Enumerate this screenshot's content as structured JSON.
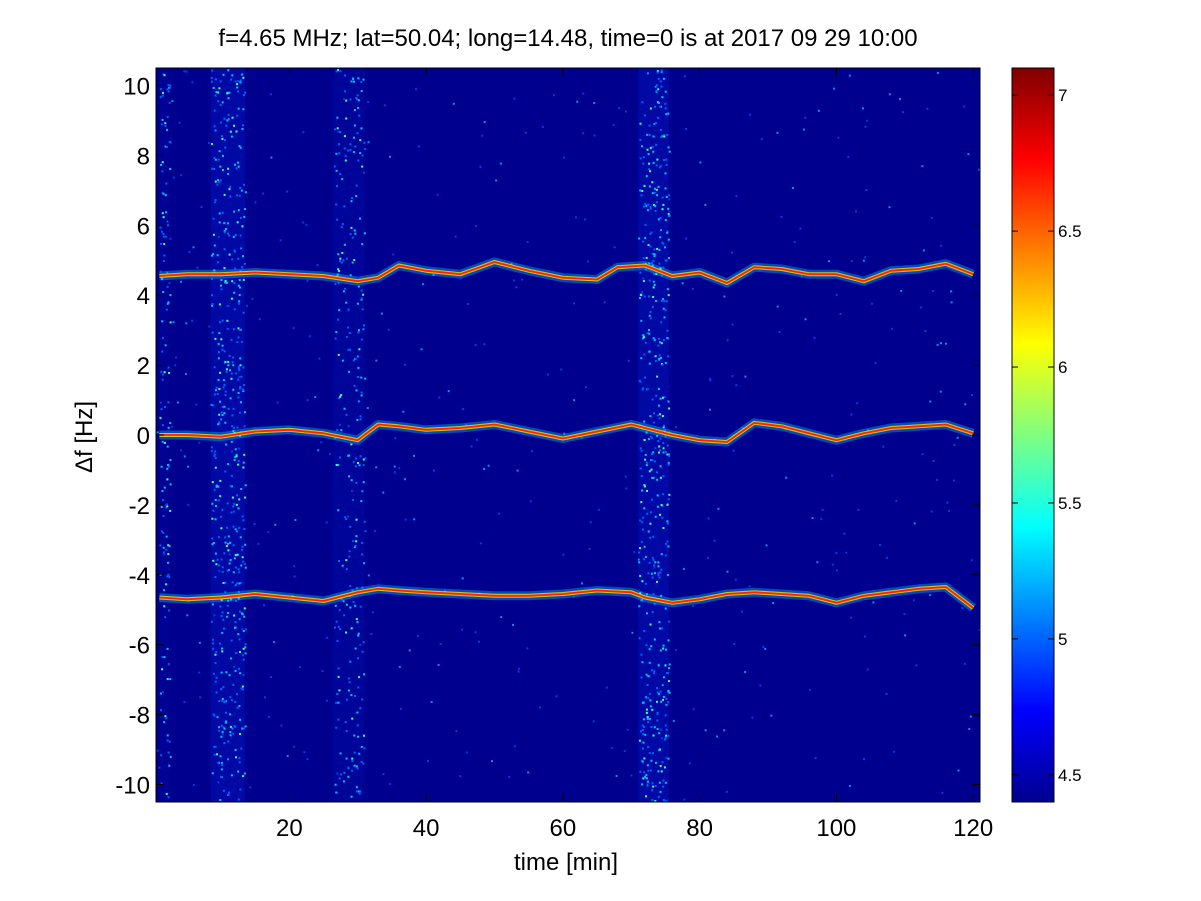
{
  "chart_data": {
    "type": "heatmap",
    "title": "f=4.65 MHz;  lat=50.04; long=14.48, time=0 is at 2017 09 29 10:00",
    "xlabel": "time [min]",
    "ylabel": "Δf [Hz]",
    "xlim": [
      0.5,
      121
    ],
    "ylim": [
      -10.5,
      10.5
    ],
    "x_ticks": [
      20,
      40,
      60,
      80,
      100,
      120
    ],
    "y_ticks": [
      -10,
      -8,
      -6,
      -4,
      -2,
      0,
      2,
      4,
      6,
      8,
      10
    ],
    "colorbar": {
      "range": [
        4.4,
        7.1
      ],
      "ticks": [
        4.5,
        5,
        5.5,
        6,
        6.5,
        7
      ],
      "colormap": "jet"
    },
    "background_color": "#00008f",
    "broadband_bands_time_min": [
      {
        "from": 8.5,
        "to": 13.5,
        "intensity": 0.55
      },
      {
        "from": 26.5,
        "to": 31.0,
        "intensity": 0.3
      },
      {
        "from": 71.0,
        "to": 75.5,
        "intensity": 0.55
      },
      {
        "from": 1.0,
        "to": 2.5,
        "intensity": 0.15
      }
    ],
    "traces": [
      {
        "time": [
          1,
          5,
          10,
          15,
          20,
          25,
          30,
          33,
          36,
          40,
          45,
          50,
          55,
          60,
          65,
          68,
          72,
          76,
          80,
          84,
          88,
          92,
          96,
          100,
          104,
          108,
          112,
          116,
          120
        ],
        "df": [
          4.55,
          4.6,
          4.6,
          4.65,
          4.6,
          4.55,
          4.4,
          4.5,
          4.85,
          4.7,
          4.6,
          4.95,
          4.7,
          4.5,
          4.45,
          4.8,
          4.85,
          4.55,
          4.65,
          4.35,
          4.8,
          4.75,
          4.6,
          4.6,
          4.4,
          4.7,
          4.75,
          4.9,
          4.6
        ]
      },
      {
        "time": [
          1,
          5,
          10,
          15,
          20,
          25,
          30,
          33,
          36,
          40,
          45,
          50,
          55,
          60,
          65,
          70,
          72,
          76,
          80,
          84,
          88,
          92,
          96,
          100,
          104,
          108,
          112,
          116,
          120
        ],
        "df": [
          0.0,
          0.0,
          -0.05,
          0.1,
          0.15,
          0.05,
          -0.15,
          0.3,
          0.25,
          0.15,
          0.2,
          0.3,
          0.1,
          -0.1,
          0.1,
          0.3,
          0.2,
          0.0,
          -0.15,
          -0.2,
          0.35,
          0.25,
          0.05,
          -0.15,
          0.05,
          0.2,
          0.25,
          0.3,
          0.05
        ]
      },
      {
        "time": [
          1,
          5,
          10,
          15,
          20,
          25,
          30,
          33,
          36,
          40,
          45,
          50,
          55,
          60,
          65,
          70,
          72,
          76,
          80,
          84,
          88,
          92,
          96,
          100,
          104,
          108,
          112,
          116,
          120
        ],
        "df": [
          -4.65,
          -4.7,
          -4.65,
          -4.55,
          -4.65,
          -4.75,
          -4.5,
          -4.4,
          -4.45,
          -4.5,
          -4.55,
          -4.6,
          -4.6,
          -4.55,
          -4.45,
          -4.5,
          -4.65,
          -4.8,
          -4.7,
          -4.55,
          -4.5,
          -4.55,
          -4.6,
          -4.8,
          -4.6,
          -4.5,
          -4.4,
          -4.35,
          -4.95
        ]
      }
    ]
  }
}
